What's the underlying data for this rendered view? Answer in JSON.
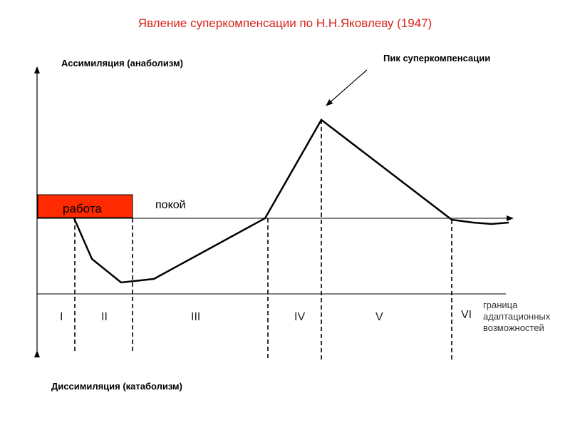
{
  "title": "Явление суперкомпенсации по Н.Н.Яковлеву (1947)",
  "colors": {
    "title": "#d9241c",
    "work_box": "#ff2a00",
    "line": "#000000"
  },
  "y_axis": {
    "top_label": "Ассимиляция (анаболизм)",
    "bottom_label": "Диссимиляция (катаболизм)"
  },
  "annotations": {
    "peak": "Пик суперкомпенсации",
    "work": "работа",
    "rest": "покой",
    "boundary": "граница адаптационных возможностей"
  },
  "phases": [
    "I",
    "II",
    "III",
    "IV",
    "V",
    "VI"
  ]
}
